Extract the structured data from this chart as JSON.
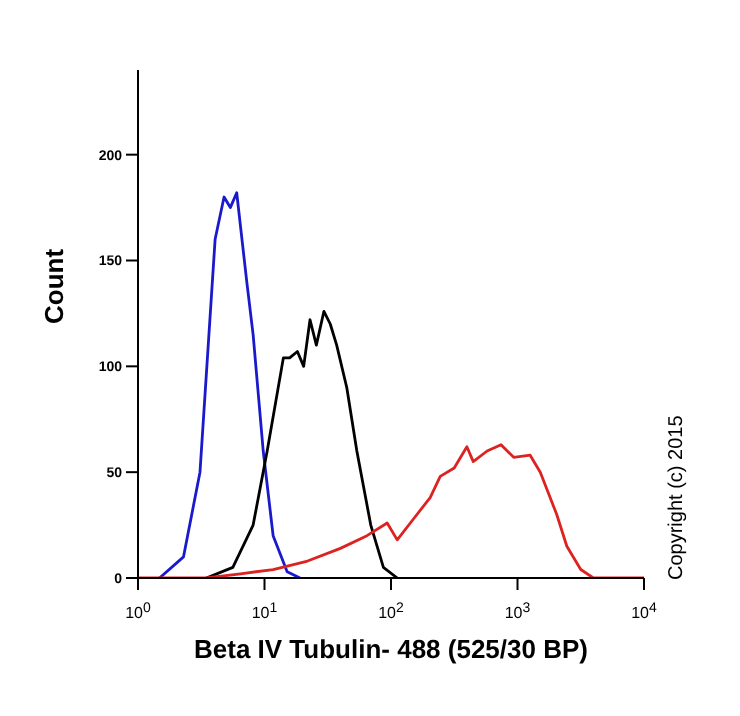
{
  "chart_data": {
    "type": "line",
    "xlabel": "Beta IV Tubulin- 488 (525/30 BP)",
    "ylabel": "Count",
    "log": "x",
    "grid": false,
    "legend": false,
    "marker": "none",
    "xlim": [
      1,
      10000
    ],
    "ylim": [
      0,
      240
    ],
    "xticks": [
      {
        "value": 1,
        "label": "10$^{0}$"
      },
      {
        "value": 10,
        "label": "10$^{1}$"
      },
      {
        "value": 100,
        "label": "10$^{2}$"
      },
      {
        "value": 1000,
        "label": "10$^{3}$"
      },
      {
        "value": 10000,
        "label": "10$^{4}$"
      }
    ],
    "yticks": [
      0,
      50,
      100,
      150,
      200
    ],
    "annotations": [
      "Copyright (c) 2015"
    ],
    "series": [
      {
        "color": "#1a1acc",
        "x": [
          1.48,
          2.29,
          3.09,
          4.07,
          4.79,
          5.37,
          6.03,
          7.24,
          8.13,
          9.77,
          11.7,
          15.1,
          19.1
        ],
        "values": [
          0,
          10,
          50,
          160,
          180,
          175,
          182,
          140,
          115,
          60,
          20,
          3,
          0
        ]
      },
      {
        "color": "#000000",
        "x": [
          3.47,
          5.62,
          8.13,
          10.5,
          14.1,
          15.8,
          18.2,
          20.4,
          22.9,
          25.7,
          29.5,
          33.1,
          37.2,
          44.7,
          53.7,
          69.2,
          87.1,
          112
        ],
        "values": [
          0,
          5,
          25,
          60,
          104,
          104,
          107,
          100,
          122,
          110,
          126,
          120,
          110,
          90,
          60,
          25,
          5,
          0
        ]
      },
      {
        "color": "#dd2222",
        "x": [
          1,
          3.47,
          6.46,
          11.7,
          21.9,
          39.8,
          64.6,
          93.3,
          112,
          151,
          204,
          245,
          316,
          398,
          447,
          575,
          741,
          933,
          1259,
          1514,
          2042,
          2455,
          3162,
          3981,
          10000
        ],
        "values": [
          0,
          0,
          2,
          4,
          8,
          14,
          20,
          26,
          18,
          28,
          38,
          48,
          52,
          62,
          55,
          60,
          63,
          57,
          58,
          50,
          30,
          15,
          4,
          0,
          0
        ]
      }
    ]
  }
}
